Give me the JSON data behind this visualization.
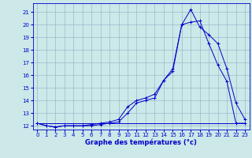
{
  "xlabel": "Graphe des températures (°c)",
  "bg_color": "#cce8e8",
  "line_color": "#0000cc",
  "grid_color": "#99bbcc",
  "xlim": [
    -0.5,
    23.5
  ],
  "ylim": [
    11.7,
    21.7
  ],
  "xticks": [
    0,
    1,
    2,
    3,
    4,
    5,
    6,
    7,
    8,
    9,
    10,
    11,
    12,
    13,
    14,
    15,
    16,
    17,
    18,
    19,
    20,
    21,
    22,
    23
  ],
  "yticks": [
    12,
    13,
    14,
    15,
    16,
    17,
    18,
    19,
    20,
    21
  ],
  "series": [
    {
      "x": [
        0,
        1,
        2,
        3,
        4,
        5,
        6,
        7,
        8,
        9,
        10,
        11,
        12,
        13,
        14,
        15,
        16,
        17,
        18,
        19,
        20,
        21,
        22,
        23
      ],
      "y": [
        12.2,
        12.0,
        11.9,
        12.0,
        12.0,
        12.0,
        12.0,
        12.1,
        12.2,
        12.3,
        13.0,
        13.8,
        14.0,
        14.2,
        15.6,
        16.3,
        20.0,
        21.2,
        19.8,
        19.2,
        18.5,
        16.5,
        13.8,
        12.5
      ],
      "marker": true
    },
    {
      "x": [
        0,
        1,
        2,
        3,
        4,
        5,
        6,
        7,
        8,
        9,
        10,
        11,
        12,
        13,
        14,
        15,
        16,
        17,
        18,
        19,
        20,
        21,
        22,
        23
      ],
      "y": [
        12.2,
        12.0,
        11.9,
        12.0,
        12.0,
        12.0,
        12.1,
        12.2,
        12.3,
        12.5,
        13.5,
        14.0,
        14.2,
        14.5,
        15.6,
        16.5,
        20.0,
        20.2,
        20.3,
        18.5,
        16.8,
        15.5,
        12.2,
        12.2
      ],
      "marker": true
    },
    {
      "x": [
        0,
        23
      ],
      "y": [
        12.2,
        12.2
      ],
      "marker": false
    }
  ]
}
